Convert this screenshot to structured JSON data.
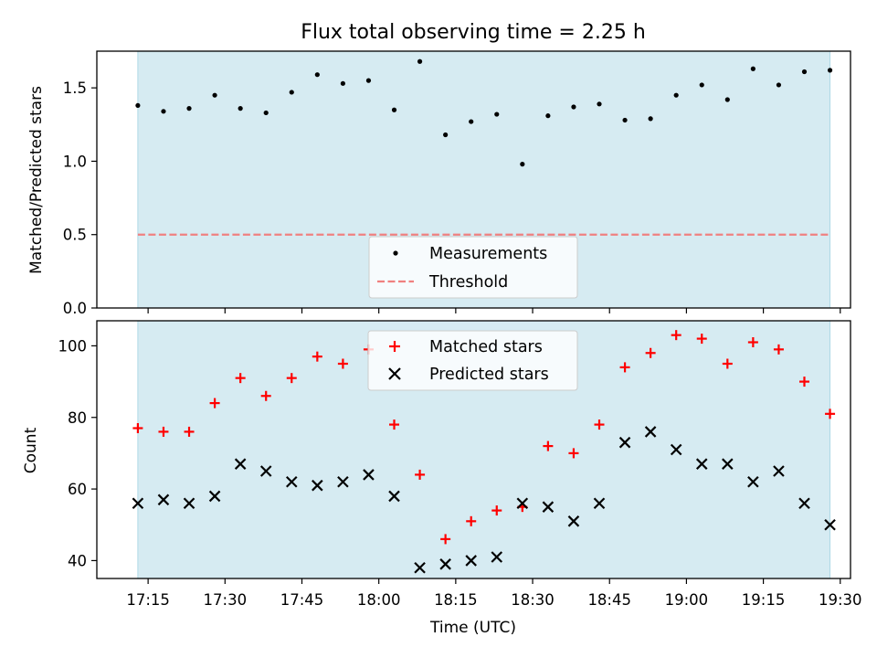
{
  "title": "Flux total observing time = 2.25 h",
  "colors": {
    "shade": "#add8e6",
    "measurement": "#000000",
    "threshold": "#f08080",
    "matched": "#ff0000",
    "predicted": "#000000"
  },
  "chart_data": [
    {
      "type": "scatter",
      "ylabel": "Matched/Predicted stars",
      "xlabel": "",
      "ylim": [
        0,
        1.75
      ],
      "yticks": [
        "0.0",
        "0.5",
        "1.0",
        "1.5"
      ],
      "shaded_span": [
        "17:13",
        "19:28"
      ],
      "series": [
        {
          "name": "Measurements",
          "x": [
            "17:13",
            "17:18",
            "17:23",
            "17:28",
            "17:33",
            "17:38",
            "17:43",
            "17:48",
            "17:53",
            "17:58",
            "18:03",
            "18:08",
            "18:13",
            "18:18",
            "18:23",
            "18:28",
            "18:33",
            "18:38",
            "18:43",
            "18:48",
            "18:53",
            "18:58",
            "19:03",
            "19:08",
            "19:13",
            "19:18",
            "19:23",
            "19:28"
          ],
          "y": [
            1.38,
            1.34,
            1.36,
            1.45,
            1.36,
            1.33,
            1.47,
            1.59,
            1.53,
            1.55,
            1.35,
            1.68,
            1.18,
            1.27,
            1.32,
            0.98,
            1.31,
            1.37,
            1.39,
            1.28,
            1.29,
            1.45,
            1.52,
            1.42,
            1.63,
            1.52,
            1.61,
            1.62
          ]
        },
        {
          "name": "Threshold",
          "type": "line",
          "x": [
            "17:13",
            "19:28"
          ],
          "y": [
            0.5,
            0.5
          ]
        }
      ],
      "legend": "bottom-center"
    },
    {
      "type": "scatter",
      "ylabel": "Count",
      "xlabel": "Time (UTC)",
      "ylim": [
        35,
        107
      ],
      "yticks": [
        "40",
        "60",
        "80",
        "100"
      ],
      "xticks": [
        "17:15",
        "17:30",
        "17:45",
        "18:00",
        "18:15",
        "18:30",
        "18:45",
        "19:00",
        "19:15",
        "19:30"
      ],
      "shaded_span": [
        "17:13",
        "19:28"
      ],
      "series": [
        {
          "name": "Matched stars",
          "x": [
            "17:13",
            "17:18",
            "17:23",
            "17:28",
            "17:33",
            "17:38",
            "17:43",
            "17:48",
            "17:53",
            "17:58",
            "18:03",
            "18:08",
            "18:13",
            "18:18",
            "18:23",
            "18:28",
            "18:33",
            "18:38",
            "18:43",
            "18:48",
            "18:53",
            "18:58",
            "19:03",
            "19:08",
            "19:13",
            "19:18",
            "19:23",
            "19:28"
          ],
          "y": [
            77,
            76,
            76,
            84,
            91,
            86,
            91,
            97,
            95,
            99,
            78,
            64,
            46,
            51,
            54,
            55,
            72,
            70,
            78,
            94,
            98,
            103,
            102,
            95,
            101,
            99,
            90,
            81
          ]
        },
        {
          "name": "Predicted stars",
          "x": [
            "17:13",
            "17:18",
            "17:23",
            "17:28",
            "17:33",
            "17:38",
            "17:43",
            "17:48",
            "17:53",
            "17:58",
            "18:03",
            "18:08",
            "18:13",
            "18:18",
            "18:23",
            "18:28",
            "18:33",
            "18:38",
            "18:43",
            "18:48",
            "18:53",
            "18:58",
            "19:03",
            "19:08",
            "19:13",
            "19:18",
            "19:23",
            "19:28"
          ],
          "y": [
            56,
            57,
            56,
            58,
            67,
            65,
            62,
            61,
            62,
            64,
            58,
            38,
            39,
            40,
            41,
            56,
            55,
            51,
            56,
            73,
            76,
            71,
            67,
            67,
            62,
            65,
            56,
            50
          ]
        }
      ],
      "legend": "top-center"
    }
  ]
}
